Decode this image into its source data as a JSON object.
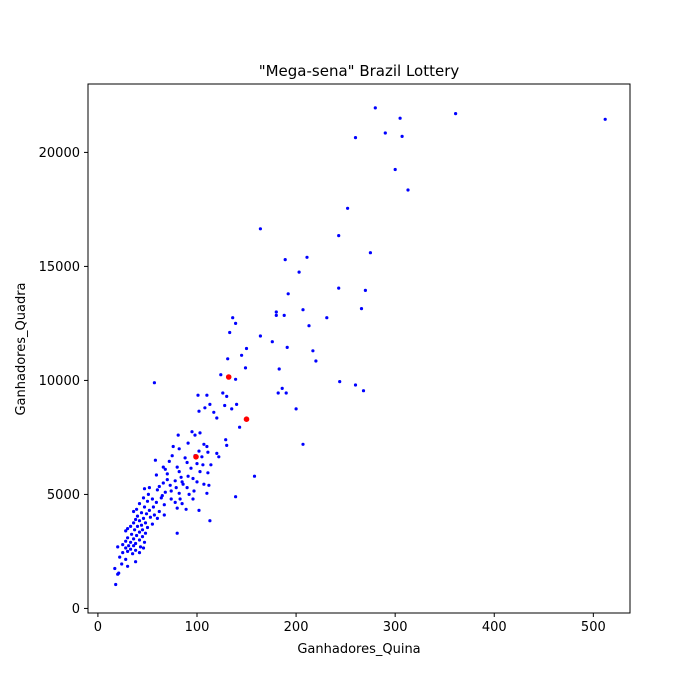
{
  "chart_data": {
    "type": "scatter",
    "title": "\"Mega-sena\" Brazil Lottery",
    "xlabel": "Ganhadores_Quina",
    "ylabel": "Ganhadores_Quadra",
    "xlim": [
      -10,
      537
    ],
    "ylim": [
      -200,
      23000
    ],
    "xticks": [
      0,
      100,
      200,
      300,
      400,
      500
    ],
    "yticks": [
      0,
      5000,
      10000,
      15000,
      20000
    ],
    "grid": false,
    "legend": "none",
    "colors": {
      "main": "#0000ff",
      "highlight": "#ff0000"
    },
    "series": [
      {
        "color": "#0000ff",
        "points": [
          [
            512,
            21450
          ],
          [
            361,
            21700
          ],
          [
            280,
            21950
          ],
          [
            305,
            21500
          ],
          [
            290,
            20850
          ],
          [
            307,
            20700
          ],
          [
            260,
            20650
          ],
          [
            300,
            19250
          ],
          [
            313,
            18350
          ],
          [
            252,
            17550
          ],
          [
            164,
            16650
          ],
          [
            243,
            16350
          ],
          [
            275,
            15600
          ],
          [
            211,
            15400
          ],
          [
            189,
            15300
          ],
          [
            203,
            14750
          ],
          [
            243,
            14050
          ],
          [
            270,
            13950
          ],
          [
            192,
            13800
          ],
          [
            266,
            13150
          ],
          [
            207,
            13100
          ],
          [
            180,
            13000
          ],
          [
            180,
            12850
          ],
          [
            188,
            12850
          ],
          [
            231,
            12750
          ],
          [
            136,
            12750
          ],
          [
            139,
            12500
          ],
          [
            213,
            12400
          ],
          [
            133,
            12100
          ],
          [
            164,
            11950
          ],
          [
            176,
            11700
          ],
          [
            150,
            11400
          ],
          [
            191,
            11450
          ],
          [
            217,
            11300
          ],
          [
            145,
            11100
          ],
          [
            131,
            10950
          ],
          [
            220,
            10850
          ],
          [
            149,
            10550
          ],
          [
            183,
            10500
          ],
          [
            124,
            10250
          ],
          [
            139,
            10050
          ],
          [
            57,
            9900
          ],
          [
            244,
            9950
          ],
          [
            260,
            9800
          ],
          [
            186,
            9650
          ],
          [
            268,
            9550
          ],
          [
            182,
            9450
          ],
          [
            190,
            9450
          ],
          [
            126,
            9450
          ],
          [
            101,
            9350
          ],
          [
            110,
            9350
          ],
          [
            130,
            9300
          ],
          [
            128,
            8900
          ],
          [
            140,
            8950
          ],
          [
            113,
            8950
          ],
          [
            135,
            8750
          ],
          [
            108,
            8800
          ],
          [
            117,
            8600
          ],
          [
            200,
            8750
          ],
          [
            102,
            8650
          ],
          [
            120,
            8350
          ],
          [
            143,
            7950
          ],
          [
            95,
            7750
          ],
          [
            103,
            7700
          ],
          [
            81,
            7600
          ],
          [
            98,
            7600
          ],
          [
            129,
            7400
          ],
          [
            91,
            7250
          ],
          [
            130,
            7150
          ],
          [
            107,
            7200
          ],
          [
            110,
            7100
          ],
          [
            207,
            7200
          ],
          [
            76,
            7100
          ],
          [
            82,
            7000
          ],
          [
            102,
            6900
          ],
          [
            111,
            6850
          ],
          [
            120,
            6800
          ],
          [
            75,
            6700
          ],
          [
            98,
            6700
          ],
          [
            105,
            6650
          ],
          [
            122,
            6650
          ],
          [
            88,
            6600
          ],
          [
            58,
            6500
          ],
          [
            72,
            6450
          ],
          [
            90,
            6400
          ],
          [
            100,
            6350
          ],
          [
            106,
            6300
          ],
          [
            114,
            6300
          ],
          [
            80,
            6200
          ],
          [
            66,
            6200
          ],
          [
            94,
            6150
          ],
          [
            68,
            6100
          ],
          [
            82,
            6000
          ],
          [
            103,
            6000
          ],
          [
            111,
            5950
          ],
          [
            70,
            5900
          ],
          [
            59,
            5850
          ],
          [
            91,
            5800
          ],
          [
            84,
            5750
          ],
          [
            158,
            5800
          ],
          [
            96,
            5700
          ],
          [
            70,
            5650
          ],
          [
            78,
            5600
          ],
          [
            85,
            5550
          ],
          [
            100,
            5550
          ],
          [
            66,
            5500
          ],
          [
            86,
            5450
          ],
          [
            107,
            5450
          ],
          [
            73,
            5400
          ],
          [
            112,
            5400
          ],
          [
            52,
            5300
          ],
          [
            62,
            5350
          ],
          [
            79,
            5300
          ],
          [
            90,
            5300
          ],
          [
            47,
            5250
          ],
          [
            60,
            5200
          ],
          [
            74,
            5150
          ],
          [
            97,
            5150
          ],
          [
            68,
            5100
          ],
          [
            82,
            5050
          ],
          [
            51,
            5000
          ],
          [
            65,
            4950
          ],
          [
            92,
            5000
          ],
          [
            110,
            5050
          ],
          [
            139,
            4900
          ],
          [
            46,
            4850
          ],
          [
            55,
            4800
          ],
          [
            64,
            4850
          ],
          [
            74,
            4800
          ],
          [
            83,
            4800
          ],
          [
            96,
            4800
          ],
          [
            50,
            4700
          ],
          [
            59,
            4650
          ],
          [
            78,
            4650
          ],
          [
            85,
            4600
          ],
          [
            42,
            4600
          ],
          [
            67,
            4550
          ],
          [
            47,
            4450
          ],
          [
            56,
            4450
          ],
          [
            80,
            4400
          ],
          [
            89,
            4350
          ],
          [
            102,
            4300
          ],
          [
            39,
            4350
          ],
          [
            52,
            4300
          ],
          [
            62,
            4250
          ],
          [
            44,
            4200
          ],
          [
            36,
            4250
          ],
          [
            49,
            4150
          ],
          [
            57,
            4100
          ],
          [
            67,
            4100
          ],
          [
            40,
            4050
          ],
          [
            46,
            3950
          ],
          [
            53,
            4000
          ],
          [
            38,
            3900
          ],
          [
            60,
            3950
          ],
          [
            113,
            3850
          ],
          [
            42,
            3850
          ],
          [
            36,
            3750
          ],
          [
            48,
            3750
          ],
          [
            44,
            3650
          ],
          [
            55,
            3700
          ],
          [
            33,
            3600
          ],
          [
            40,
            3600
          ],
          [
            50,
            3550
          ],
          [
            30,
            3500
          ],
          [
            37,
            3450
          ],
          [
            45,
            3450
          ],
          [
            28,
            3400
          ],
          [
            42,
            3350
          ],
          [
            48,
            3300
          ],
          [
            80,
            3300
          ],
          [
            34,
            3250
          ],
          [
            39,
            3200
          ],
          [
            45,
            3150
          ],
          [
            30,
            3100
          ],
          [
            36,
            3050
          ],
          [
            42,
            3000
          ],
          [
            28,
            2950
          ],
          [
            33,
            2900
          ],
          [
            47,
            2900
          ],
          [
            38,
            2850
          ],
          [
            25,
            2800
          ],
          [
            31,
            2750
          ],
          [
            36,
            2750
          ],
          [
            43,
            2700
          ],
          [
            20,
            2700
          ],
          [
            28,
            2650
          ],
          [
            46,
            2650
          ],
          [
            33,
            2600
          ],
          [
            38,
            2550
          ],
          [
            30,
            2500
          ],
          [
            25,
            2450
          ],
          [
            42,
            2450
          ],
          [
            35,
            2400
          ],
          [
            22,
            2250
          ],
          [
            28,
            2150
          ],
          [
            38,
            2050
          ],
          [
            24,
            1950
          ],
          [
            30,
            1850
          ],
          [
            17,
            1750
          ],
          [
            21,
            1550
          ],
          [
            20,
            1500
          ],
          [
            18,
            1050
          ]
        ]
      },
      {
        "color": "#ff0000",
        "points": [
          [
            132,
            10150
          ],
          [
            150,
            8300
          ],
          [
            99,
            6650
          ]
        ]
      }
    ]
  }
}
